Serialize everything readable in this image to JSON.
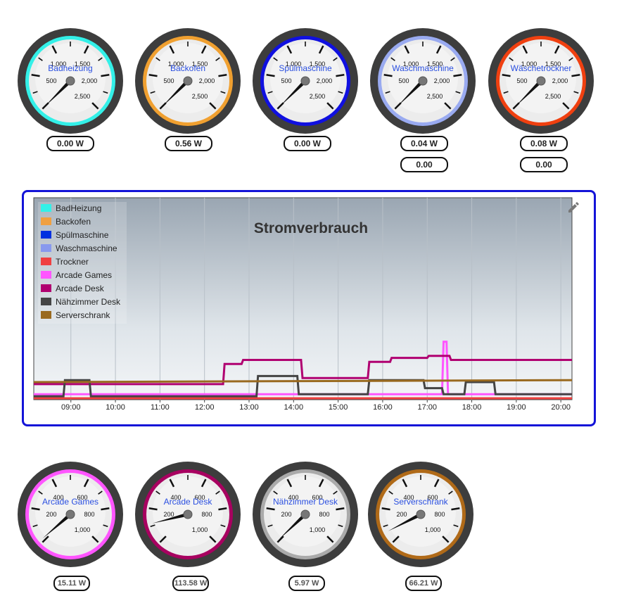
{
  "gauges_top": [
    {
      "label": "Badheizung",
      "color": "#33f0e8",
      "ticks": [
        "500",
        "1,000",
        "1,500",
        "2,000",
        "2,500"
      ],
      "readout": "0.00 W",
      "extra": "",
      "value_frac": 0.0
    },
    {
      "label": "Backofen",
      "color": "#f0a030",
      "ticks": [
        "500",
        "1,000",
        "1,500",
        "2,000",
        "2,500"
      ],
      "readout": "0.56 W",
      "extra": "",
      "value_frac": 0.0
    },
    {
      "label": "Spülmaschine",
      "color": "#1010e0",
      "ticks": [
        "500",
        "1,000",
        "1,500",
        "2,000",
        "2,500"
      ],
      "readout": "0.00 W",
      "extra": "",
      "value_frac": 0.0
    },
    {
      "label": "Waschmaschine",
      "color": "#99aaf0",
      "ticks": [
        "500",
        "1,000",
        "1,500",
        "2,000",
        "2,500"
      ],
      "readout": "0.04 W",
      "extra": "0.00",
      "value_frac": 0.0
    },
    {
      "label": "Wäschetrockner",
      "color": "#f04010",
      "ticks": [
        "500",
        "1,000",
        "1,500",
        "2,000",
        "2,500"
      ],
      "readout": "0.08 W",
      "extra": "0.00",
      "value_frac": 0.0
    }
  ],
  "gauges_bottom": [
    {
      "label": "Arcade Games",
      "color": "#ff55ff",
      "ticks": [
        "200",
        "400",
        "600",
        "800",
        "1,000"
      ],
      "readout": "15.11 W",
      "extra": "",
      "value_frac": 0.015
    },
    {
      "label": "Arcade Desk",
      "color": "#a80060",
      "ticks": [
        "200",
        "400",
        "600",
        "800",
        "1,000"
      ],
      "readout": "113.58 W",
      "extra": "",
      "value_frac": 0.114
    },
    {
      "label": "Nähzimmer Desk",
      "color": "#aaaaaa",
      "ticks": [
        "200",
        "400",
        "600",
        "800",
        "1,000"
      ],
      "readout": "5.97 W",
      "extra": "",
      "value_frac": 0.006
    },
    {
      "label": "Serverschrank",
      "color": "#b06a18",
      "ticks": [
        "200",
        "400",
        "600",
        "800",
        "1,000"
      ],
      "readout": "66.21 W",
      "extra": "",
      "value_frac": 0.066
    }
  ],
  "chart": {
    "edit_icon": "pencil-icon",
    "chart_data": {
      "type": "line",
      "title": "Stromverbrauch",
      "x_ticks": [
        "09:00",
        "10:00",
        "11:00",
        "12:00",
        "13:00",
        "14:00",
        "15:00",
        "16:00",
        "17:00",
        "18:00",
        "19:00",
        "20:00"
      ],
      "x_range": [
        "08:10",
        "20:15"
      ],
      "y_range": [
        0,
        1000
      ],
      "grid": true,
      "legend_position": "top-left",
      "series": [
        {
          "name": "BadHeizung",
          "color": "#33f0e8",
          "points": [
            [
              "08:10",
              0
            ],
            [
              "20:15",
              0
            ]
          ]
        },
        {
          "name": "Backofen",
          "color": "#f0a040",
          "points": [
            [
              "08:10",
              0
            ],
            [
              "20:15",
              0
            ]
          ]
        },
        {
          "name": "Spülmaschine",
          "color": "#0030e0",
          "points": [
            [
              "08:10",
              0
            ],
            [
              "20:15",
              0
            ]
          ]
        },
        {
          "name": "Waschmaschine",
          "color": "#8899ee",
          "points": [
            [
              "08:10",
              0
            ],
            [
              "20:15",
              0
            ]
          ]
        },
        {
          "name": "Trockner",
          "color": "#f04040",
          "points": [
            [
              "08:10",
              0
            ],
            [
              "20:15",
              0
            ]
          ]
        },
        {
          "name": "Arcade Games",
          "color": "#ff55ff",
          "points": [
            [
              "08:10",
              20
            ],
            [
              "17:20",
              20
            ],
            [
              "17:22",
              280
            ],
            [
              "17:26",
              280
            ],
            [
              "17:28",
              20
            ],
            [
              "20:15",
              20
            ]
          ]
        },
        {
          "name": "Arcade Desk",
          "color": "#b00070",
          "points": [
            [
              "08:10",
              70
            ],
            [
              "12:25",
              70
            ],
            [
              "12:27",
              170
            ],
            [
              "12:50",
              170
            ],
            [
              "12:52",
              190
            ],
            [
              "14:10",
              190
            ],
            [
              "14:12",
              100
            ],
            [
              "15:40",
              100
            ],
            [
              "15:42",
              180
            ],
            [
              "16:10",
              180
            ],
            [
              "16:12",
              200
            ],
            [
              "17:00",
              200
            ],
            [
              "17:02",
              210
            ],
            [
              "17:30",
              210
            ],
            [
              "17:32",
              190
            ],
            [
              "20:15",
              190
            ]
          ]
        },
        {
          "name": "Nähzimmer Desk",
          "color": "#444444",
          "points": [
            [
              "08:10",
              10
            ],
            [
              "08:50",
              10
            ],
            [
              "08:52",
              90
            ],
            [
              "09:25",
              90
            ],
            [
              "09:27",
              10
            ],
            [
              "13:10",
              10
            ],
            [
              "13:12",
              110
            ],
            [
              "14:05",
              110
            ],
            [
              "14:07",
              20
            ],
            [
              "15:40",
              20
            ],
            [
              "15:42",
              90
            ],
            [
              "16:55",
              90
            ],
            [
              "16:57",
              50
            ],
            [
              "17:20",
              50
            ],
            [
              "17:22",
              20
            ],
            [
              "17:50",
              20
            ],
            [
              "17:52",
              80
            ],
            [
              "18:30",
              80
            ],
            [
              "18:32",
              20
            ],
            [
              "20:15",
              20
            ]
          ]
        },
        {
          "name": "Serverschrank",
          "color": "#9a6a20",
          "points": [
            [
              "08:10",
              80
            ],
            [
              "20:15",
              90
            ]
          ]
        }
      ]
    }
  }
}
